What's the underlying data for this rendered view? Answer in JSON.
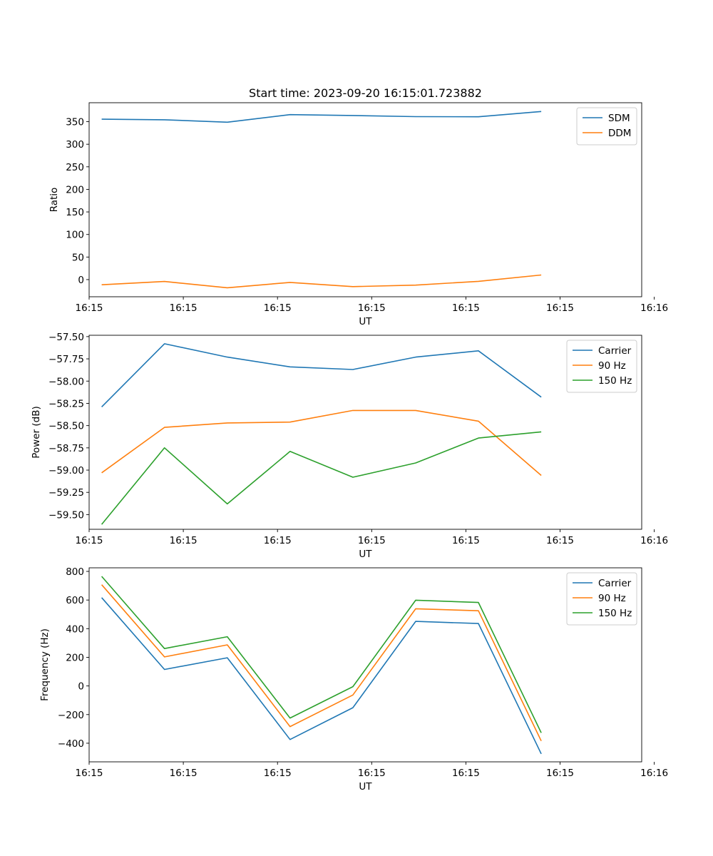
{
  "title": "Start time: 2023-09-20 16:15:01.723882",
  "chart_data": [
    {
      "type": "line",
      "title": "Start time: 2023-09-20 16:15:01.723882",
      "xlabel": "UT",
      "ylabel": "Ratio",
      "x": [
        1,
        2,
        3,
        4,
        5,
        6,
        7,
        8
      ],
      "xlim": [
        0.8,
        9.6
      ],
      "ylim": [
        -38,
        392
      ],
      "xticks": [
        {
          "v": 0.8,
          "label": "16:15"
        },
        {
          "v": 2.3,
          "label": "16:15"
        },
        {
          "v": 3.8,
          "label": "16:15"
        },
        {
          "v": 5.3,
          "label": "16:15"
        },
        {
          "v": 6.8,
          "label": "16:15"
        },
        {
          "v": 8.3,
          "label": "16:15"
        },
        {
          "v": 9.8,
          "label": "16:16"
        }
      ],
      "yticks": [
        {
          "v": 350,
          "label": "350"
        },
        {
          "v": 300,
          "label": "300"
        },
        {
          "v": 250,
          "label": "250"
        },
        {
          "v": 200,
          "label": "200"
        },
        {
          "v": 150,
          "label": "150"
        },
        {
          "v": 100,
          "label": "100"
        },
        {
          "v": 50,
          "label": "50"
        },
        {
          "v": 0,
          "label": "0"
        }
      ],
      "legend": "top-right",
      "series": [
        {
          "name": "SDM",
          "color": "#1f77b4",
          "values": [
            355.5,
            354.2,
            348.9,
            365.6,
            363.7,
            361.1,
            360.8,
            372.6
          ]
        },
        {
          "name": "DDM",
          "color": "#ff7f0e",
          "values": [
            -11.5,
            -4.2,
            -18.1,
            -6.3,
            -15.5,
            -12.3,
            -3.8,
            10.2
          ]
        }
      ]
    },
    {
      "type": "line",
      "title": "",
      "xlabel": "UT",
      "ylabel": "Power (dB)",
      "x": [
        1,
        2,
        3,
        4,
        5,
        6,
        7,
        8
      ],
      "xlim": [
        0.8,
        9.6
      ],
      "ylim": [
        -59.665,
        -57.485
      ],
      "xticks": [
        {
          "v": 0.8,
          "label": "16:15"
        },
        {
          "v": 2.3,
          "label": "16:15"
        },
        {
          "v": 3.8,
          "label": "16:15"
        },
        {
          "v": 5.3,
          "label": "16:15"
        },
        {
          "v": 6.8,
          "label": "16:15"
        },
        {
          "v": 8.3,
          "label": "16:15"
        },
        {
          "v": 9.8,
          "label": "16:16"
        }
      ],
      "yticks": [
        {
          "v": -57.5,
          "label": "−57.50"
        },
        {
          "v": -57.75,
          "label": "−57.75"
        },
        {
          "v": -58.0,
          "label": "−58.00"
        },
        {
          "v": -58.25,
          "label": "−58.25"
        },
        {
          "v": -58.5,
          "label": "−58.50"
        },
        {
          "v": -58.75,
          "label": "−58.75"
        },
        {
          "v": -59.0,
          "label": "−59.00"
        },
        {
          "v": -59.25,
          "label": "−59.25"
        },
        {
          "v": -59.5,
          "label": "−59.50"
        }
      ],
      "legend": "top-right",
      "series": [
        {
          "name": "Carrier",
          "color": "#1f77b4",
          "values": [
            -58.29,
            -57.58,
            -57.73,
            -57.84,
            -57.87,
            -57.73,
            -57.66,
            -58.18
          ]
        },
        {
          "name": "90 Hz",
          "color": "#ff7f0e",
          "values": [
            -59.03,
            -58.52,
            -58.47,
            -58.46,
            -58.33,
            -58.33,
            -58.45,
            -59.06
          ]
        },
        {
          "name": "150 Hz",
          "color": "#2ca02c",
          "values": [
            -59.61,
            -58.75,
            -59.38,
            -58.79,
            -59.08,
            -58.92,
            -58.64,
            -58.57
          ]
        }
      ]
    },
    {
      "type": "line",
      "title": "",
      "xlabel": "UT",
      "ylabel": "Frequency (Hz)",
      "x": [
        1,
        2,
        3,
        4,
        5,
        6,
        7,
        8
      ],
      "xlim": [
        0.8,
        9.6
      ],
      "ylim": [
        -530,
        825
      ],
      "xticks": [
        {
          "v": 0.8,
          "label": "16:15"
        },
        {
          "v": 2.3,
          "label": "16:15"
        },
        {
          "v": 3.8,
          "label": "16:15"
        },
        {
          "v": 5.3,
          "label": "16:15"
        },
        {
          "v": 6.8,
          "label": "16:15"
        },
        {
          "v": 8.3,
          "label": "16:15"
        },
        {
          "v": 9.8,
          "label": "16:16"
        }
      ],
      "yticks": [
        {
          "v": 800,
          "label": "800"
        },
        {
          "v": 600,
          "label": "600"
        },
        {
          "v": 400,
          "label": "400"
        },
        {
          "v": 200,
          "label": "200"
        },
        {
          "v": 0,
          "label": "0"
        },
        {
          "v": -200,
          "label": "−200"
        },
        {
          "v": -400,
          "label": "−400"
        }
      ],
      "legend": "top-right",
      "series": [
        {
          "name": "Carrier",
          "color": "#1f77b4",
          "values": [
            617,
            115,
            197,
            -374,
            -152,
            451,
            436,
            -474
          ]
        },
        {
          "name": "90 Hz",
          "color": "#ff7f0e",
          "values": [
            707,
            203,
            287,
            -284,
            -63,
            539,
            525,
            -384
          ]
        },
        {
          "name": "150 Hz",
          "color": "#2ca02c",
          "values": [
            765,
            261,
            344,
            -224,
            -5,
            599,
            583,
            -327
          ]
        }
      ]
    }
  ]
}
